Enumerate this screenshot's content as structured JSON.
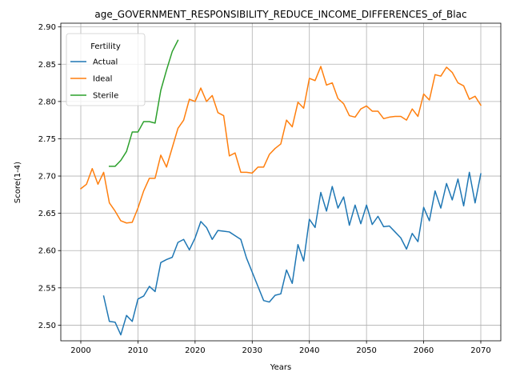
{
  "chart_data": {
    "type": "line",
    "title": "age_GOVERNMENT_RESPONSIBILITY_REDUCE_INCOME_DIFFERENCES_of_Blac",
    "xlabel": "Years",
    "ylabel": "Score(1-4)",
    "xlim": [
      1996.5,
      2073.5
    ],
    "ylim": [
      2.479,
      2.905
    ],
    "xticks": [
      2000,
      2010,
      2020,
      2030,
      2040,
      2050,
      2060,
      2070
    ],
    "xtick_labels": [
      "2000",
      "2010",
      "2020",
      "2030",
      "2040",
      "2050",
      "2060",
      "2070"
    ],
    "yticks": [
      2.5,
      2.55,
      2.6,
      2.65,
      2.7,
      2.75,
      2.8,
      2.85,
      2.9
    ],
    "ytick_labels": [
      "2.50",
      "2.55",
      "2.60",
      "2.65",
      "2.70",
      "2.75",
      "2.80",
      "2.85",
      "2.90"
    ],
    "grid": true,
    "legend": {
      "title": "Fertility",
      "placement": "top-left"
    },
    "series": [
      {
        "name": "Actual",
        "color": "#1f77b4",
        "x": [
          2004,
          2005,
          2006,
          2007,
          2008,
          2009,
          2010,
          2011,
          2012,
          2013,
          2014,
          2015,
          2016,
          2017,
          2018,
          2019,
          2020,
          2021,
          2022,
          2023,
          2024,
          2025,
          2026,
          2027,
          2028,
          2029,
          2030,
          2031,
          2032,
          2033,
          2034,
          2035,
          2036,
          2037,
          2038,
          2039,
          2040,
          2041,
          2042,
          2043,
          2044,
          2045,
          2046,
          2047,
          2048,
          2049,
          2050,
          2051,
          2052,
          2053,
          2054,
          2055,
          2056,
          2057,
          2058,
          2059,
          2060,
          2061,
          2062,
          2063,
          2064,
          2065,
          2066,
          2067,
          2068,
          2069,
          2070
        ],
        "y": [
          2.539,
          2.505,
          2.504,
          2.487,
          2.513,
          2.505,
          2.535,
          2.539,
          2.552,
          2.545,
          2.584,
          2.588,
          2.591,
          2.611,
          2.615,
          2.601,
          2.617,
          2.639,
          2.631,
          2.615,
          2.627,
          2.626,
          2.625,
          2.62,
          2.615,
          2.59,
          2.571,
          2.552,
          2.533,
          2.531,
          2.54,
          2.542,
          2.574,
          2.556,
          2.608,
          2.586,
          2.642,
          2.631,
          2.678,
          2.653,
          2.686,
          2.657,
          2.672,
          2.634,
          2.661,
          2.636,
          2.661,
          2.635,
          2.646,
          2.632,
          2.633,
          2.625,
          2.617,
          2.602,
          2.623,
          2.612,
          2.658,
          2.64,
          2.68,
          2.657,
          2.69,
          2.668,
          2.696,
          2.66,
          2.705,
          2.664,
          2.703
        ]
      },
      {
        "name": "Ideal",
        "color": "#ff7f0e",
        "x": [
          2000,
          2001,
          2002,
          2003,
          2004,
          2005,
          2006,
          2007,
          2008,
          2009,
          2010,
          2011,
          2012,
          2013,
          2014,
          2015,
          2016,
          2017,
          2018,
          2019,
          2020,
          2021,
          2022,
          2023,
          2024,
          2025,
          2026,
          2027,
          2028,
          2029,
          2030,
          2031,
          2032,
          2033,
          2034,
          2035,
          2036,
          2037,
          2038,
          2039,
          2040,
          2041,
          2042,
          2043,
          2044,
          2045,
          2046,
          2047,
          2048,
          2049,
          2050,
          2051,
          2052,
          2053,
          2054,
          2055,
          2056,
          2057,
          2058,
          2059,
          2060,
          2061,
          2062,
          2063,
          2064,
          2065,
          2066,
          2067,
          2068,
          2069,
          2070
        ],
        "y": [
          2.683,
          2.689,
          2.71,
          2.689,
          2.705,
          2.664,
          2.653,
          2.64,
          2.637,
          2.638,
          2.657,
          2.68,
          2.697,
          2.697,
          2.728,
          2.712,
          2.738,
          2.764,
          2.775,
          2.803,
          2.8,
          2.818,
          2.8,
          2.808,
          2.785,
          2.781,
          2.727,
          2.731,
          2.705,
          2.705,
          2.704,
          2.712,
          2.712,
          2.729,
          2.737,
          2.743,
          2.775,
          2.766,
          2.799,
          2.791,
          2.831,
          2.828,
          2.847,
          2.822,
          2.825,
          2.804,
          2.797,
          2.781,
          2.779,
          2.79,
          2.794,
          2.787,
          2.787,
          2.777,
          2.779,
          2.78,
          2.78,
          2.775,
          2.79,
          2.78,
          2.81,
          2.802,
          2.836,
          2.834,
          2.846,
          2.839,
          2.825,
          2.821,
          2.803,
          2.807,
          2.795
        ]
      },
      {
        "name": "Sterile",
        "color": "#2ca02c",
        "x": [
          2005,
          2006,
          2007,
          2008,
          2009,
          2010,
          2011,
          2012,
          2013,
          2014,
          2015,
          2016,
          2017
        ],
        "y": [
          2.713,
          2.713,
          2.721,
          2.733,
          2.759,
          2.759,
          2.773,
          2.773,
          2.771,
          2.815,
          2.842,
          2.867,
          2.882
        ]
      }
    ]
  }
}
